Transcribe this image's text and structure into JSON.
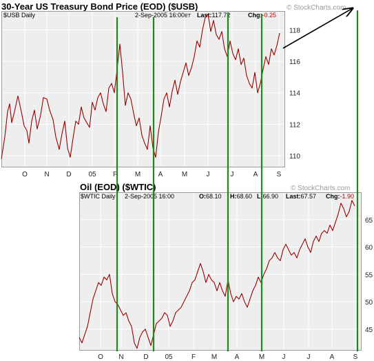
{
  "chart_data": [
    {
      "type": "line",
      "title": "30-Year US Treasury Bond Price (EOD) ($USB)",
      "label": "$USB Daily",
      "date": "2-Sep-2005 16:00",
      "date_suffix": "ET",
      "last_label": "Last:",
      "last": "117.72",
      "chg_label": "Chg:",
      "chg": "-0.25",
      "watermark": "© StockCharts.com",
      "x_ticks": [
        "O",
        "N",
        "D",
        "05",
        "F",
        "M",
        "A",
        "M",
        "J",
        "J",
        "A",
        "S"
      ],
      "y_ticks": [
        "110",
        "112",
        "114",
        "116",
        "118"
      ],
      "ylim": [
        109.3,
        119.2
      ],
      "grid": true,
      "series": [
        {
          "color": "#cc0000",
          "x": [
            0,
            5,
            9,
            12,
            15,
            19,
            24,
            29,
            33,
            37,
            40,
            44,
            48,
            52,
            57,
            61,
            66,
            70,
            75,
            79,
            84,
            88,
            92,
            96,
            100,
            104,
            108,
            112,
            116,
            120,
            124,
            128,
            132,
            136,
            140,
            144,
            148,
            152,
            156,
            160,
            164,
            168,
            172,
            176,
            180,
            184,
            188,
            192,
            196,
            200,
            204,
            208,
            212,
            216,
            220,
            224,
            228,
            232,
            236,
            240,
            244,
            248,
            252,
            256,
            260,
            264,
            268,
            272,
            276,
            280,
            284,
            288,
            292,
            296,
            300,
            304,
            308,
            312,
            316,
            320,
            324,
            328,
            332,
            336,
            340,
            344,
            348,
            352,
            356,
            360,
            364,
            368,
            372,
            376,
            380,
            384,
            388,
            392,
            396,
            400,
            404
          ],
          "y": [
            109.8,
            111.2,
            112.8,
            113.3,
            112.1,
            112.8,
            113.8,
            112.8,
            111.9,
            111.6,
            110.8,
            112.2,
            112.9,
            111.7,
            112.6,
            113.7,
            113.6,
            112.9,
            112.3,
            111.2,
            110.4,
            111.4,
            112.2,
            110.5,
            109.9,
            111.1,
            112.2,
            112.0,
            113.1,
            112.4,
            112.1,
            111.8,
            113.4,
            112.9,
            113.7,
            114.0,
            113.3,
            112.8,
            114.3,
            114.6,
            114.0,
            115.5,
            117.1,
            115.3,
            113.2,
            114.0,
            113.6,
            112.7,
            111.9,
            112.4,
            111.3,
            110.8,
            110.4,
            111.9,
            110.5,
            109.9,
            111.5,
            112.5,
            113.6,
            114.0,
            113.1,
            114.1,
            114.8,
            113.9,
            114.7,
            115.3,
            115.9,
            115.1,
            115.6,
            116.3,
            117.3,
            116.9,
            118.0,
            118.8,
            119.0,
            117.9,
            118.6,
            117.7,
            117.4,
            117.9,
            116.8,
            116.3,
            117.3,
            116.5,
            116.1,
            116.8,
            115.8,
            116.2,
            115.1,
            114.6,
            114.3,
            115.3,
            114.0,
            114.6,
            115.5,
            116.3,
            115.8,
            116.8,
            116.4,
            117.0,
            117.8
          ]
        }
      ]
    },
    {
      "type": "line",
      "title": "Oil (EOD) ($WTIC)",
      "label": "$WTIC Daily",
      "date": "2-Sep-2005 16:00",
      "open_label": "O:",
      "open": "68.10",
      "high_label": "H:",
      "high": "68.60",
      "low_label": "L:",
      "low": "66.90",
      "last_label": "Last:",
      "last": "67.57",
      "chg_label": "Chg:",
      "chg": "-1.90",
      "watermark": "© StockCharts.com",
      "x_ticks": [
        "O",
        "N",
        "D",
        "05",
        "F",
        "M",
        "A",
        "M",
        "J",
        "J",
        "A",
        "S"
      ],
      "y_ticks": [
        "45",
        "50",
        "55",
        "60",
        "65"
      ],
      "ylim": [
        41.2,
        70
      ],
      "grid": true,
      "series": [
        {
          "color": "#cc0000",
          "x": [
            0,
            4,
            8,
            12,
            16,
            20,
            24,
            28,
            32,
            36,
            40,
            44,
            48,
            52,
            56,
            60,
            64,
            68,
            72,
            76,
            80,
            84,
            88,
            92,
            96,
            100,
            104,
            108,
            112,
            116,
            120,
            124,
            128,
            132,
            136,
            140,
            144,
            148,
            152,
            156,
            160,
            164,
            168,
            172,
            176,
            180,
            184,
            188,
            192,
            196,
            200,
            204,
            208,
            212,
            216,
            220,
            224,
            228,
            232,
            236,
            240,
            244,
            248,
            252,
            256,
            260,
            264,
            268,
            272,
            276,
            280,
            284,
            288,
            292,
            296,
            300,
            304,
            308,
            312,
            316,
            320,
            324,
            328,
            332,
            336,
            340,
            344,
            348,
            352,
            356,
            360,
            364,
            368,
            372,
            376,
            380,
            384,
            388,
            392,
            396,
            400
          ],
          "y": [
            43.5,
            42.5,
            44.0,
            45.5,
            48.0,
            50.5,
            52.0,
            53.5,
            53.0,
            54.5,
            54.0,
            55.0,
            51.5,
            50.0,
            49.5,
            48.5,
            47.5,
            48.0,
            46.5,
            45.5,
            42.5,
            41.5,
            43.5,
            44.5,
            45.0,
            43.5,
            42.0,
            44.0,
            46.0,
            46.5,
            47.0,
            48.0,
            47.5,
            45.5,
            46.5,
            48.0,
            48.5,
            49.0,
            50.0,
            51.0,
            52.0,
            53.5,
            54.0,
            55.5,
            57.0,
            55.5,
            53.5,
            55.0,
            54.0,
            53.5,
            52.0,
            53.5,
            52.0,
            51.0,
            54.0,
            51.5,
            50.0,
            51.0,
            50.5,
            51.5,
            50.0,
            49.0,
            50.5,
            52.0,
            53.0,
            54.5,
            53.5,
            55.0,
            56.0,
            57.5,
            58.0,
            59.0,
            58.0,
            57.5,
            59.5,
            60.5,
            59.5,
            58.5,
            59.0,
            58.0,
            59.5,
            60.5,
            61.5,
            60.0,
            59.0,
            61.0,
            62.0,
            61.0,
            62.5,
            63.0,
            62.5,
            64.0,
            63.0,
            64.5,
            66.0,
            68.0,
            67.0,
            65.5,
            66.5,
            68.5,
            67.5
          ]
        }
      ]
    }
  ]
}
